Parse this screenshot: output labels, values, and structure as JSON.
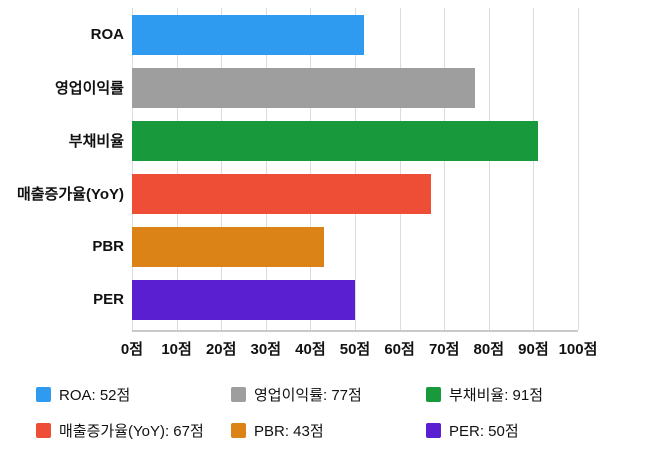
{
  "chart_data": {
    "type": "bar",
    "orientation": "horizontal",
    "title": "",
    "xlabel": "",
    "ylabel": "",
    "unit": "점",
    "categories": [
      "ROA",
      "영업이익률",
      "부채비율",
      "매출증가율(YoY)",
      "PBR",
      "PER"
    ],
    "values": [
      52,
      77,
      91,
      67,
      43,
      50
    ],
    "colors": [
      "#2E9BF0",
      "#9E9E9E",
      "#189A3C",
      "#EF4E36",
      "#DC8318",
      "#5A1FD0"
    ],
    "xlim": [
      0,
      100
    ],
    "x_ticks": [
      0,
      10,
      20,
      30,
      40,
      50,
      60,
      70,
      80,
      90,
      100
    ],
    "x_tick_labels": [
      "0점",
      "10점",
      "20점",
      "30점",
      "40점",
      "50점",
      "60점",
      "70점",
      "80점",
      "90점",
      "100점"
    ],
    "grid": true,
    "legend_position": "bottom",
    "legend": [
      {
        "label": "ROA: 52점",
        "color": "#2E9BF0"
      },
      {
        "label": "영업이익률: 77점",
        "color": "#9E9E9E"
      },
      {
        "label": "부채비율: 91점",
        "color": "#189A3C"
      },
      {
        "label": "매출증가율(YoY): 67점",
        "color": "#EF4E36"
      },
      {
        "label": "PBR: 43점",
        "color": "#DC8318"
      },
      {
        "label": "PER: 50점",
        "color": "#5A1FD0"
      }
    ]
  }
}
